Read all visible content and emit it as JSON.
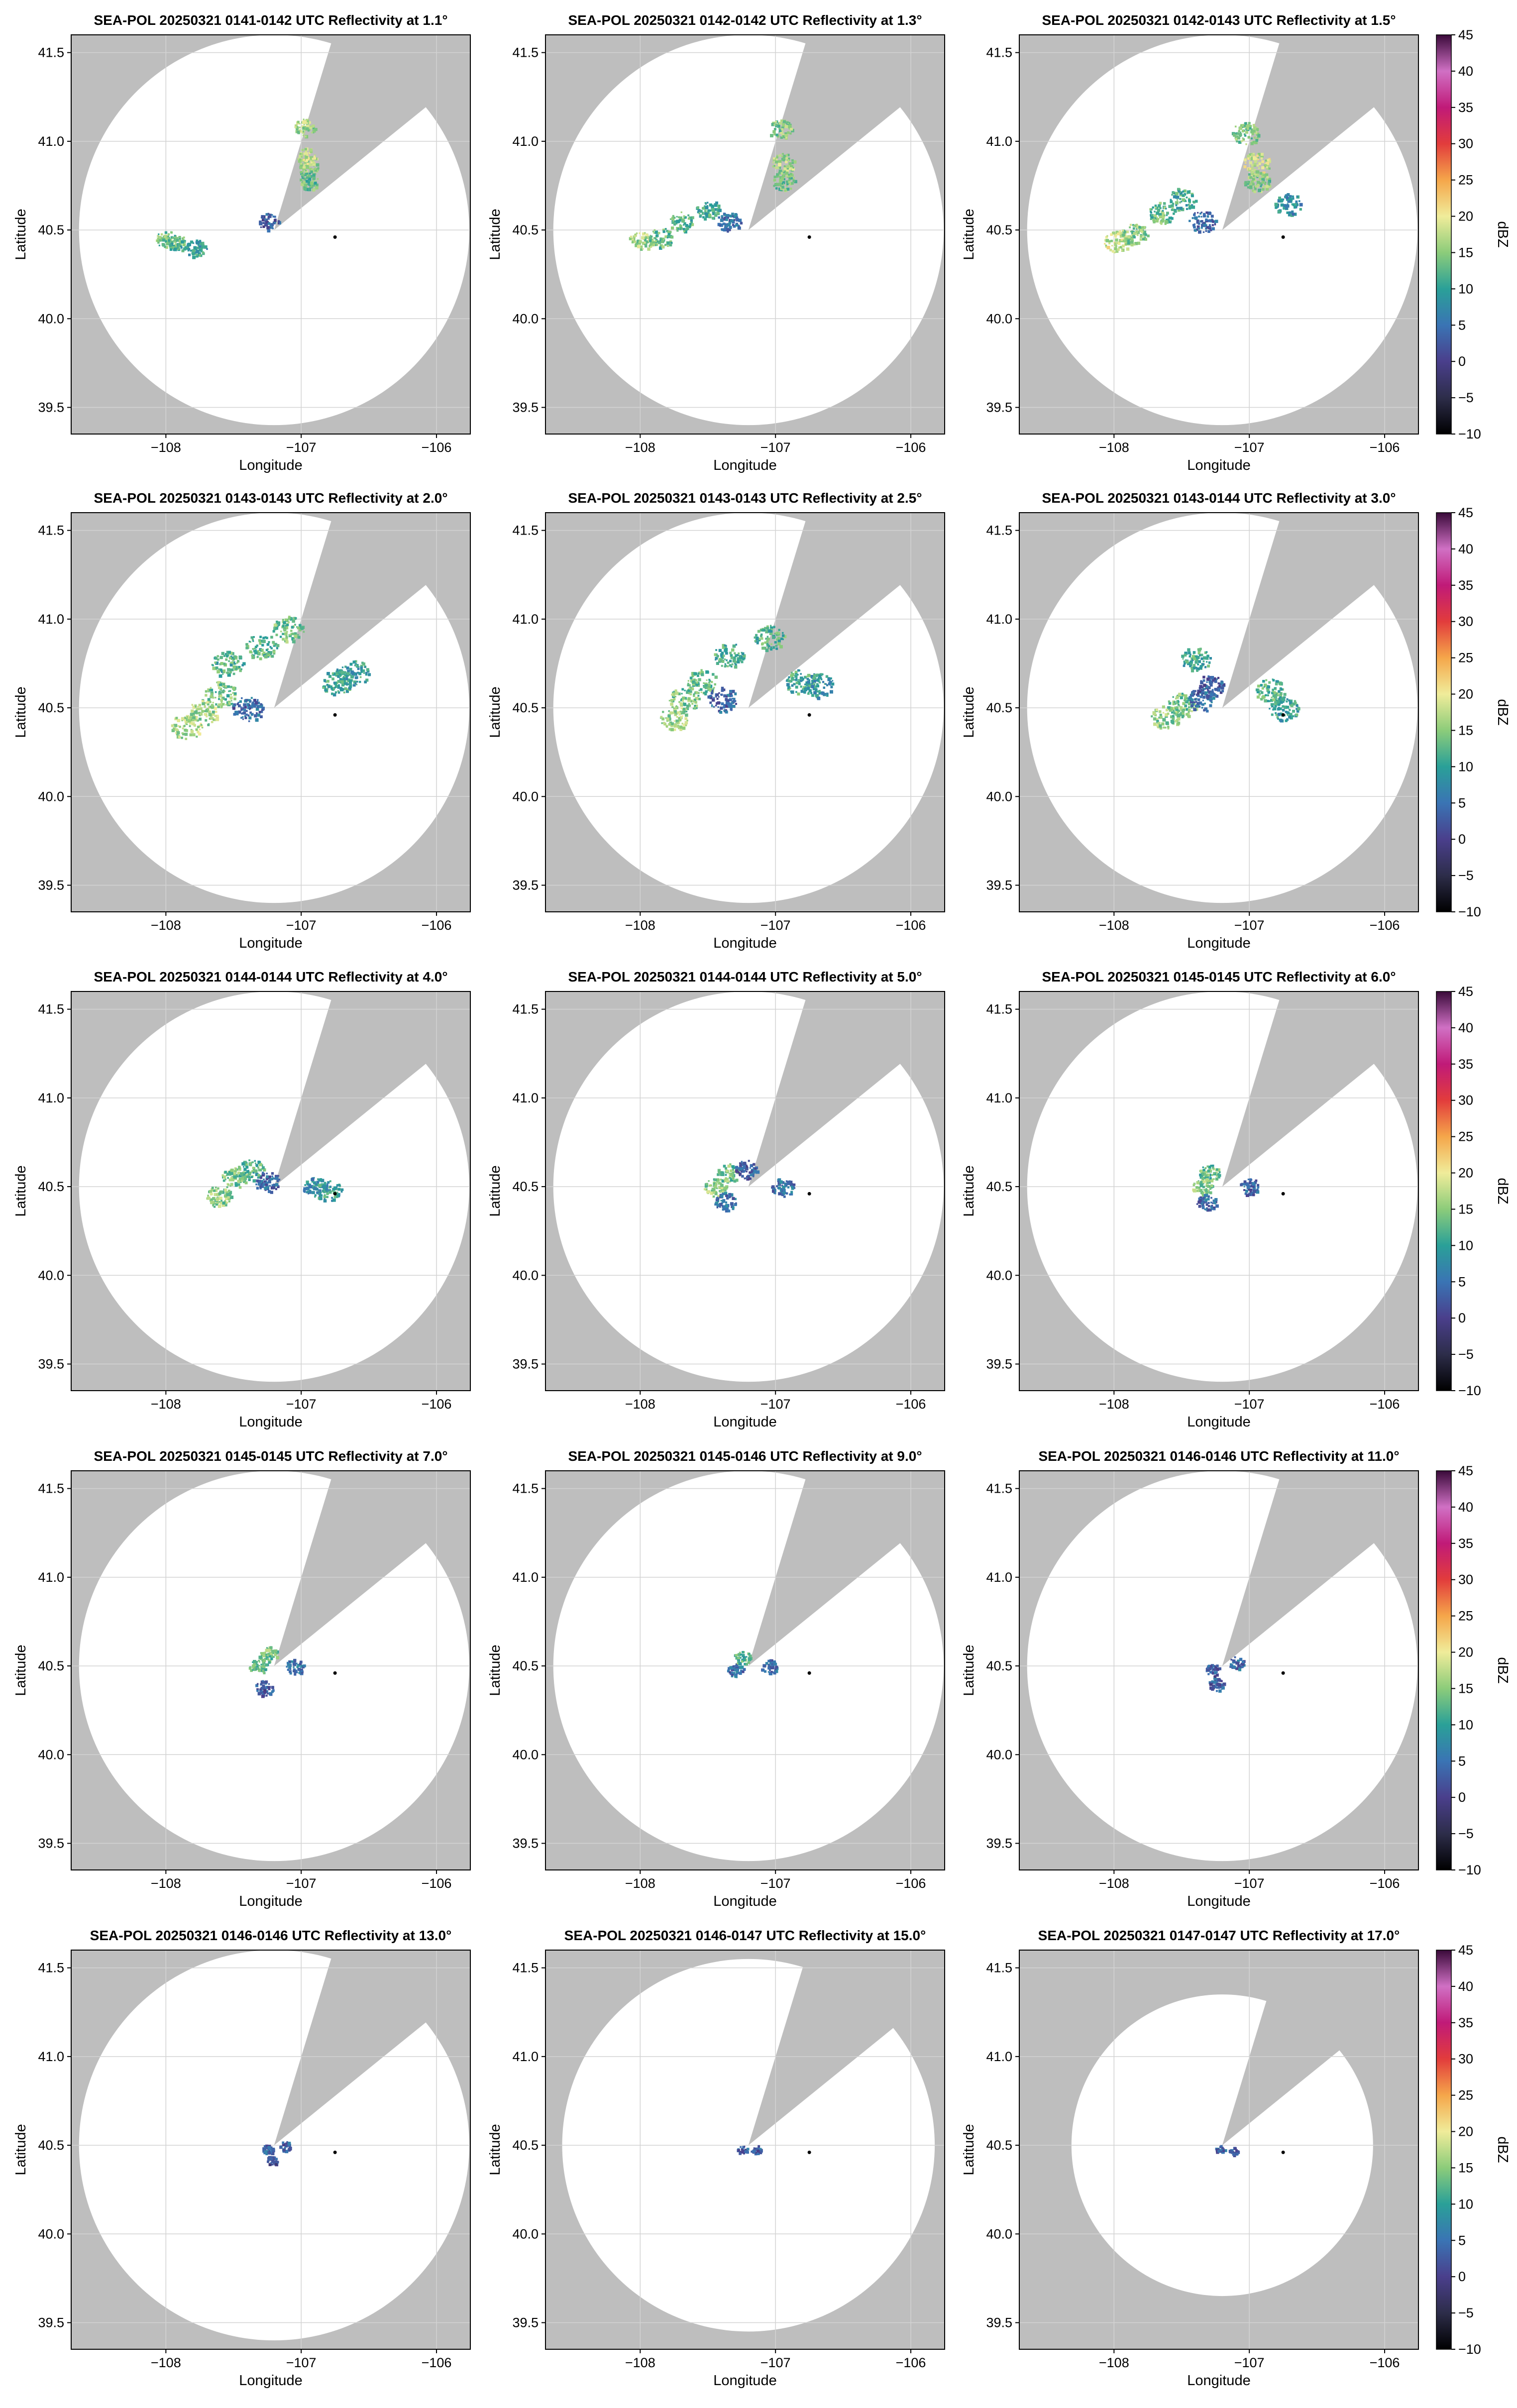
{
  "figure": {
    "background": "#ffffff",
    "panel_fill": "#bebebe",
    "coverage_fill": "#ffffff",
    "grid_color": "#d3d3d3",
    "frame_color": "#000000"
  },
  "chart_data": {
    "type": "heatmap",
    "layout": {
      "rows": 5,
      "cols": 3,
      "colorbar_column": "right"
    },
    "xlabel": "Longitude",
    "ylabel": "Latitude",
    "xlim": [
      -108.7,
      -105.75
    ],
    "ylim": [
      39.35,
      41.6
    ],
    "x_ticks": [
      {
        "value": -108,
        "label": "−108"
      },
      {
        "value": -107,
        "label": "−107"
      },
      {
        "value": -106,
        "label": "−106"
      }
    ],
    "y_ticks": [
      {
        "value": 39.5,
        "label": "39.5"
      },
      {
        "value": 40.0,
        "label": "40.0"
      },
      {
        "value": 40.5,
        "label": "40.5"
      },
      {
        "value": 41.0,
        "label": "41.0"
      },
      {
        "value": 41.5,
        "label": "41.5"
      }
    ],
    "grid": true,
    "radar_site": {
      "lon": -107.2,
      "lat": 40.5
    },
    "marker": {
      "lon": -106.75,
      "lat": 40.46
    },
    "colorbar": {
      "label": "dBZ",
      "range": [
        -10,
        45
      ],
      "ticks": [
        {
          "value": 45,
          "label": "45"
        },
        {
          "value": 40,
          "label": "40"
        },
        {
          "value": 35,
          "label": "35"
        },
        {
          "value": 30,
          "label": "30"
        },
        {
          "value": 25,
          "label": "25"
        },
        {
          "value": 20,
          "label": "20"
        },
        {
          "value": 15,
          "label": "15"
        },
        {
          "value": 10,
          "label": "10"
        },
        {
          "value": 5,
          "label": "5"
        },
        {
          "value": 0,
          "label": "0"
        },
        {
          "value": -5,
          "label": "−5"
        },
        {
          "value": -10,
          "label": "−10"
        }
      ],
      "color_stops": [
        {
          "value": -10,
          "color": "#000000"
        },
        {
          "value": -5,
          "color": "#2d2d4a"
        },
        {
          "value": 0,
          "color": "#4a3f8c"
        },
        {
          "value": 5,
          "color": "#3a74b4"
        },
        {
          "value": 10,
          "color": "#2aa098"
        },
        {
          "value": 15,
          "color": "#8ccc7a"
        },
        {
          "value": 20,
          "color": "#f0ec9a"
        },
        {
          "value": 25,
          "color": "#f5a64a"
        },
        {
          "value": 30,
          "color": "#e23c3c"
        },
        {
          "value": 35,
          "color": "#c01a78"
        },
        {
          "value": 40,
          "color": "#d070c4"
        },
        {
          "value": 45,
          "color": "#3a0a3a"
        }
      ]
    },
    "panels": [
      {
        "title": "SEA-POL 20250321 0141-0142 UTC Reflectivity at 1.1°",
        "elevation": 1.1,
        "range_lat_deg": 1.1,
        "spread": 1.0,
        "cells": [
          {
            "lon": -106.95,
            "lat": 40.85,
            "dbz": 15
          },
          {
            "lon": -106.96,
            "lat": 40.92,
            "dbz": 17
          },
          {
            "lon": -106.94,
            "lat": 40.78,
            "dbz": 13
          },
          {
            "lon": -106.98,
            "lat": 41.08,
            "dbz": 16
          },
          {
            "lon": -108.0,
            "lat": 40.45,
            "dbz": 14
          },
          {
            "lon": -107.92,
            "lat": 40.43,
            "dbz": 12
          },
          {
            "lon": -107.78,
            "lat": 40.4,
            "dbz": 10
          },
          {
            "lon": -107.25,
            "lat": 40.55,
            "dbz": 3
          }
        ]
      },
      {
        "title": "SEA-POL 20250321 0142-0142 UTC Reflectivity at 1.3°",
        "elevation": 1.3,
        "range_lat_deg": 1.1,
        "spread": 1.15,
        "cells": [
          {
            "lon": -106.95,
            "lat": 40.88,
            "dbz": 16
          },
          {
            "lon": -106.95,
            "lat": 40.78,
            "dbz": 14
          },
          {
            "lon": -106.97,
            "lat": 41.07,
            "dbz": 15
          },
          {
            "lon": -108.0,
            "lat": 40.44,
            "dbz": 16
          },
          {
            "lon": -107.85,
            "lat": 40.46,
            "dbz": 13
          },
          {
            "lon": -107.7,
            "lat": 40.55,
            "dbz": 12
          },
          {
            "lon": -107.5,
            "lat": 40.62,
            "dbz": 11
          },
          {
            "lon": -107.35,
            "lat": 40.55,
            "dbz": 5
          }
        ]
      },
      {
        "title": "SEA-POL 20250321 0142-0143 UTC Reflectivity at 1.5°",
        "elevation": 1.5,
        "range_lat_deg": 1.1,
        "spread": 1.3,
        "cells": [
          {
            "lon": -106.95,
            "lat": 40.88,
            "dbz": 18
          },
          {
            "lon": -106.95,
            "lat": 40.78,
            "dbz": 15
          },
          {
            "lon": -107.03,
            "lat": 41.05,
            "dbz": 14
          },
          {
            "lon": -107.98,
            "lat": 40.44,
            "dbz": 18
          },
          {
            "lon": -107.85,
            "lat": 40.48,
            "dbz": 15
          },
          {
            "lon": -107.65,
            "lat": 40.6,
            "dbz": 13
          },
          {
            "lon": -107.5,
            "lat": 40.68,
            "dbz": 11
          },
          {
            "lon": -107.35,
            "lat": 40.55,
            "dbz": 4
          },
          {
            "lon": -106.72,
            "lat": 40.65,
            "dbz": 8
          }
        ]
      },
      {
        "title": "SEA-POL 20250321 0143-0143 UTC Reflectivity at 2.0°",
        "elevation": 2.0,
        "range_lat_deg": 1.1,
        "spread": 1.5,
        "cells": [
          {
            "lon": -107.85,
            "lat": 40.4,
            "dbz": 17
          },
          {
            "lon": -107.72,
            "lat": 40.48,
            "dbz": 16
          },
          {
            "lon": -107.6,
            "lat": 40.58,
            "dbz": 14
          },
          {
            "lon": -107.4,
            "lat": 40.5,
            "dbz": 4
          },
          {
            "lon": -107.55,
            "lat": 40.75,
            "dbz": 12
          },
          {
            "lon": -107.3,
            "lat": 40.85,
            "dbz": 12
          },
          {
            "lon": -107.1,
            "lat": 40.95,
            "dbz": 14
          },
          {
            "lon": -106.75,
            "lat": 40.65,
            "dbz": 11
          },
          {
            "lon": -106.62,
            "lat": 40.7,
            "dbz": 10
          }
        ]
      },
      {
        "title": "SEA-POL 20250321 0143-0143 UTC Reflectivity at 2.5°",
        "elevation": 2.5,
        "range_lat_deg": 1.1,
        "spread": 1.45,
        "cells": [
          {
            "lon": -107.75,
            "lat": 40.45,
            "dbz": 16
          },
          {
            "lon": -107.68,
            "lat": 40.55,
            "dbz": 14
          },
          {
            "lon": -107.55,
            "lat": 40.65,
            "dbz": 13
          },
          {
            "lon": -107.4,
            "lat": 40.55,
            "dbz": 4
          },
          {
            "lon": -107.35,
            "lat": 40.8,
            "dbz": 11
          },
          {
            "lon": -107.05,
            "lat": 40.9,
            "dbz": 12
          },
          {
            "lon": -106.82,
            "lat": 40.65,
            "dbz": 11
          },
          {
            "lon": -106.68,
            "lat": 40.63,
            "dbz": 9
          }
        ]
      },
      {
        "title": "SEA-POL 20250321 0143-0144 UTC Reflectivity at 3.0°",
        "elevation": 3.0,
        "range_lat_deg": 1.1,
        "spread": 1.4,
        "cells": [
          {
            "lon": -107.62,
            "lat": 40.45,
            "dbz": 15
          },
          {
            "lon": -107.5,
            "lat": 40.52,
            "dbz": 14
          },
          {
            "lon": -107.35,
            "lat": 40.55,
            "dbz": 5
          },
          {
            "lon": -107.3,
            "lat": 40.62,
            "dbz": 3
          },
          {
            "lon": -107.4,
            "lat": 40.78,
            "dbz": 11
          },
          {
            "lon": -106.85,
            "lat": 40.6,
            "dbz": 12
          },
          {
            "lon": -106.75,
            "lat": 40.5,
            "dbz": 10
          }
        ]
      },
      {
        "title": "SEA-POL 20250321 0144-0144 UTC Reflectivity at 4.0°",
        "elevation": 4.0,
        "range_lat_deg": 1.1,
        "spread": 1.25,
        "cells": [
          {
            "lon": -107.62,
            "lat": 40.45,
            "dbz": 15
          },
          {
            "lon": -107.5,
            "lat": 40.55,
            "dbz": 14
          },
          {
            "lon": -107.38,
            "lat": 40.6,
            "dbz": 12
          },
          {
            "lon": -107.25,
            "lat": 40.53,
            "dbz": 4
          },
          {
            "lon": -106.9,
            "lat": 40.5,
            "dbz": 8
          },
          {
            "lon": -106.8,
            "lat": 40.48,
            "dbz": 10
          }
        ]
      },
      {
        "title": "SEA-POL 20250321 0144-0144 UTC Reflectivity at 5.0°",
        "elevation": 5.0,
        "range_lat_deg": 1.1,
        "spread": 1.1,
        "cells": [
          {
            "lon": -107.45,
            "lat": 40.5,
            "dbz": 15
          },
          {
            "lon": -107.35,
            "lat": 40.58,
            "dbz": 14
          },
          {
            "lon": -107.38,
            "lat": 40.42,
            "dbz": 5
          },
          {
            "lon": -107.22,
            "lat": 40.6,
            "dbz": 3
          },
          {
            "lon": -106.95,
            "lat": 40.5,
            "dbz": 5
          }
        ]
      },
      {
        "title": "SEA-POL 20250321 0145-0145 UTC Reflectivity at 6.0°",
        "elevation": 6.0,
        "range_lat_deg": 1.1,
        "spread": 1.0,
        "cells": [
          {
            "lon": -107.35,
            "lat": 40.5,
            "dbz": 15
          },
          {
            "lon": -107.3,
            "lat": 40.58,
            "dbz": 13
          },
          {
            "lon": -107.32,
            "lat": 40.42,
            "dbz": 4
          },
          {
            "lon": -107.0,
            "lat": 40.5,
            "dbz": 4
          }
        ]
      },
      {
        "title": "SEA-POL 20250321 0145-0145 UTC Reflectivity at 7.0°",
        "elevation": 7.0,
        "range_lat_deg": 1.1,
        "spread": 0.9,
        "cells": [
          {
            "lon": -107.32,
            "lat": 40.5,
            "dbz": 12
          },
          {
            "lon": -107.25,
            "lat": 40.57,
            "dbz": 14
          },
          {
            "lon": -107.28,
            "lat": 40.38,
            "dbz": 3
          },
          {
            "lon": -107.05,
            "lat": 40.5,
            "dbz": 5
          }
        ]
      },
      {
        "title": "SEA-POL 20250321 0145-0146 UTC Reflectivity at 9.0°",
        "elevation": 9.0,
        "range_lat_deg": 1.1,
        "spread": 0.8,
        "cells": [
          {
            "lon": -107.3,
            "lat": 40.48,
            "dbz": 5
          },
          {
            "lon": -107.25,
            "lat": 40.55,
            "dbz": 12
          },
          {
            "lon": -107.05,
            "lat": 40.5,
            "dbz": 4
          }
        ]
      },
      {
        "title": "SEA-POL 20250321 0146-0146 UTC Reflectivity at 11.0°",
        "elevation": 11.0,
        "range_lat_deg": 1.1,
        "spread": 0.75,
        "cells": [
          {
            "lon": -107.28,
            "lat": 40.48,
            "dbz": 3
          },
          {
            "lon": -107.25,
            "lat": 40.4,
            "dbz": 3
          },
          {
            "lon": -107.1,
            "lat": 40.52,
            "dbz": 4
          }
        ]
      },
      {
        "title": "SEA-POL 20250321 0146-0146 UTC Reflectivity at 13.0°",
        "elevation": 13.0,
        "range_lat_deg": 1.1,
        "spread": 0.55,
        "cells": [
          {
            "lon": -107.25,
            "lat": 40.48,
            "dbz": 3
          },
          {
            "lon": -107.22,
            "lat": 40.42,
            "dbz": 2
          },
          {
            "lon": -107.12,
            "lat": 40.5,
            "dbz": 3
          }
        ]
      },
      {
        "title": "SEA-POL 20250321 0146-0147 UTC Reflectivity at 15.0°",
        "elevation": 15.0,
        "range_lat_deg": 1.05,
        "spread": 0.5,
        "cells": [
          {
            "lon": -107.25,
            "lat": 40.48,
            "dbz": 3
          },
          {
            "lon": -107.15,
            "lat": 40.48,
            "dbz": 3
          }
        ]
      },
      {
        "title": "SEA-POL 20250321 0147-0147 UTC Reflectivity at 17.0°",
        "elevation": 17.0,
        "range_lat_deg": 0.85,
        "spread": 0.45,
        "cells": [
          {
            "lon": -107.22,
            "lat": 40.48,
            "dbz": 3
          },
          {
            "lon": -107.12,
            "lat": 40.47,
            "dbz": 3
          }
        ]
      }
    ]
  }
}
